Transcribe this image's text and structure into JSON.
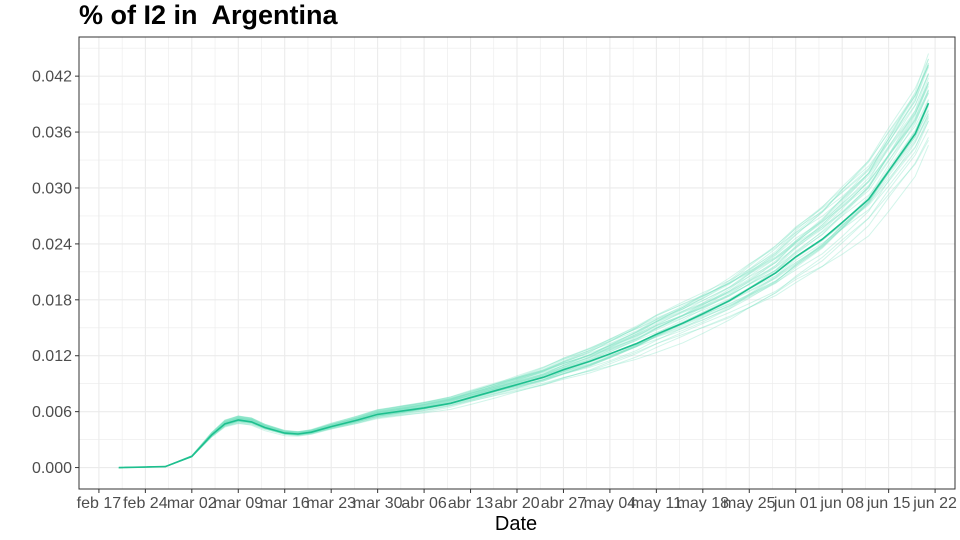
{
  "chart_data": {
    "type": "line",
    "title": "% of I2 in  Argentina",
    "xlabel": "Date",
    "ylabel": "",
    "x_tick_labels": [
      "feb 17",
      "feb 24",
      "mar 02",
      "mar 09",
      "mar 16",
      "mar 23",
      "mar 30",
      "abr 06",
      "abr 13",
      "abr 20",
      "abr 27",
      "may 04",
      "may 11",
      "may 18",
      "may 25",
      "jun 01",
      "jun 08",
      "jun 15",
      "jun 22"
    ],
    "y_tick_labels": [
      "0.000",
      "0.006",
      "0.012",
      "0.018",
      "0.024",
      "0.030",
      "0.036",
      "0.042"
    ],
    "ylim": [
      -0.0023,
      0.0462
    ],
    "xlim": [
      "2020-02-14",
      "2020-06-25"
    ],
    "grid": true,
    "legend": "none",
    "colors": {
      "mean_line": "#1dbf8e",
      "sample_lines": "#7fe3c4",
      "panel_border": "#333333",
      "grid": "#ebebeb"
    },
    "series": [
      {
        "role": "mean",
        "x": [
          "2020-02-20",
          "2020-02-27",
          "2020-03-02",
          "2020-03-05",
          "2020-03-07",
          "2020-03-09",
          "2020-03-11",
          "2020-03-13",
          "2020-03-16",
          "2020-03-18",
          "2020-03-20",
          "2020-03-23",
          "2020-03-27",
          "2020-03-30",
          "2020-04-03",
          "2020-04-06",
          "2020-04-10",
          "2020-04-13",
          "2020-04-17",
          "2020-04-20",
          "2020-04-24",
          "2020-04-27",
          "2020-05-01",
          "2020-05-04",
          "2020-05-08",
          "2020-05-11",
          "2020-05-15",
          "2020-05-18",
          "2020-05-22",
          "2020-05-25",
          "2020-05-29",
          "2020-06-01",
          "2020-06-05",
          "2020-06-08",
          "2020-06-12",
          "2020-06-15",
          "2020-06-19",
          "2020-06-21"
        ],
        "y": [
          0.0,
          0.0001,
          0.0012,
          0.0035,
          0.0047,
          0.0051,
          0.0049,
          0.0043,
          0.0037,
          0.0036,
          0.0038,
          0.0044,
          0.0051,
          0.0057,
          0.0061,
          0.0064,
          0.0069,
          0.0075,
          0.0083,
          0.0089,
          0.0097,
          0.0105,
          0.0114,
          0.0122,
          0.0133,
          0.0143,
          0.0155,
          0.0165,
          0.0179,
          0.0192,
          0.0209,
          0.0226,
          0.0245,
          0.0263,
          0.0288,
          0.0318,
          0.0358,
          0.0391
        ]
      }
    ],
    "sample_lines_count": 40
  }
}
